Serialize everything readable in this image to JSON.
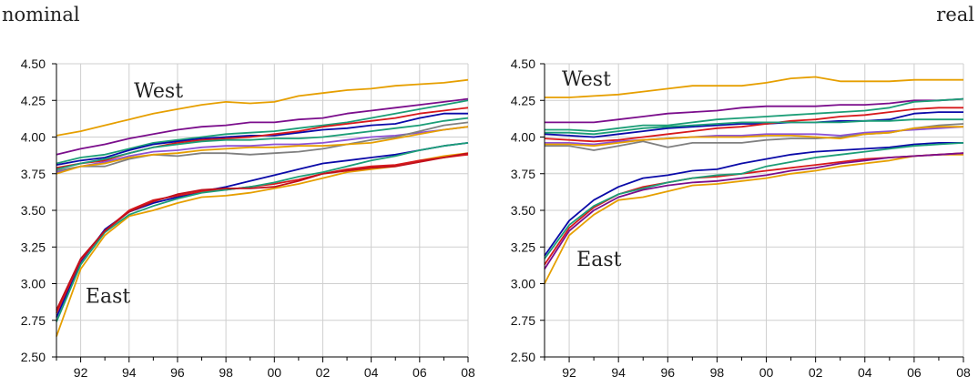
{
  "panels_titles": {
    "left": "nominal",
    "right": "real"
  },
  "x_tick_labels": [
    "92",
    "94",
    "96",
    "98",
    "00",
    "02",
    "04",
    "06",
    "08"
  ],
  "palette": [
    "#e69f00",
    "#7b0e8c",
    "#1c9e77",
    "#0a0aa8",
    "#d7191c",
    "#8c52d6",
    "#808080",
    "#c0101c"
  ],
  "chart_data": [
    {
      "type": "line",
      "title": "nominal",
      "x": [
        1991,
        1992,
        1993,
        1994,
        1995,
        1996,
        1997,
        1998,
        1999,
        2000,
        2001,
        2002,
        2003,
        2004,
        2005,
        2006,
        2007,
        2008
      ],
      "xlim": [
        1991,
        2008
      ],
      "ylim": [
        2.5,
        4.5
      ],
      "y_ticks": [
        "2.50",
        "2.75",
        "3.00",
        "3.25",
        "3.50",
        "3.75",
        "4.00",
        "4.25",
        "4.50"
      ],
      "grid": true,
      "annotations": [
        {
          "text": "West",
          "x": 1994.2,
          "y": 4.27
        },
        {
          "text": "East",
          "x": 1992.2,
          "y": 2.87
        }
      ],
      "series": [
        {
          "group": "West",
          "color": "#e69f00",
          "values": [
            4.01,
            4.04,
            4.08,
            4.12,
            4.16,
            4.19,
            4.22,
            4.24,
            4.23,
            4.24,
            4.28,
            4.3,
            4.32,
            4.33,
            4.35,
            4.36,
            4.37,
            4.39
          ]
        },
        {
          "group": "West",
          "color": "#7b0e8c",
          "values": [
            3.88,
            3.92,
            3.95,
            3.99,
            4.02,
            4.05,
            4.07,
            4.08,
            4.1,
            4.1,
            4.12,
            4.13,
            4.16,
            4.18,
            4.2,
            4.22,
            4.24,
            4.26
          ]
        },
        {
          "group": "West",
          "color": "#1c9e77",
          "values": [
            3.82,
            3.86,
            3.88,
            3.92,
            3.96,
            3.98,
            4.0,
            4.02,
            4.03,
            4.04,
            4.06,
            4.08,
            4.1,
            4.13,
            4.16,
            4.19,
            4.22,
            4.25
          ]
        },
        {
          "group": "West",
          "color": "#0a0aa8",
          "values": [
            3.81,
            3.84,
            3.86,
            3.91,
            3.95,
            3.97,
            3.99,
            4.0,
            4.01,
            4.01,
            4.03,
            4.05,
            4.06,
            4.08,
            4.09,
            4.13,
            4.16,
            4.16
          ]
        },
        {
          "group": "West",
          "color": "#d7191c",
          "values": [
            3.79,
            3.82,
            3.84,
            3.89,
            3.93,
            3.96,
            3.98,
            3.99,
            4.0,
            4.02,
            4.04,
            4.07,
            4.09,
            4.11,
            4.13,
            4.16,
            4.18,
            4.2
          ]
        },
        {
          "group": "West",
          "color": "#1c9e77",
          "values": [
            3.78,
            3.82,
            3.85,
            3.89,
            3.93,
            3.95,
            3.97,
            3.98,
            3.98,
            3.99,
            3.99,
            4.0,
            4.02,
            4.04,
            4.06,
            4.08,
            4.11,
            4.13
          ]
        },
        {
          "group": "West",
          "color": "#8c52d6",
          "values": [
            3.76,
            3.8,
            3.83,
            3.87,
            3.9,
            3.91,
            3.93,
            3.94,
            3.94,
            3.95,
            3.95,
            3.96,
            3.98,
            4.0,
            4.01,
            4.03,
            4.05,
            4.07
          ]
        },
        {
          "group": "West",
          "color": "#808080",
          "values": [
            3.77,
            3.8,
            3.8,
            3.85,
            3.88,
            3.87,
            3.89,
            3.89,
            3.88,
            3.89,
            3.9,
            3.92,
            3.95,
            3.98,
            4.0,
            4.04,
            4.08,
            4.1
          ]
        },
        {
          "group": "West",
          "color": "#e69f00",
          "values": [
            3.75,
            3.8,
            3.82,
            3.86,
            3.88,
            3.89,
            3.91,
            3.92,
            3.93,
            3.93,
            3.94,
            3.94,
            3.95,
            3.96,
            3.99,
            4.02,
            4.05,
            4.07
          ]
        },
        {
          "group": "East",
          "color": "#e69f00",
          "values": [
            2.64,
            3.1,
            3.33,
            3.46,
            3.5,
            3.55,
            3.59,
            3.6,
            3.62,
            3.65,
            3.68,
            3.72,
            3.76,
            3.78,
            3.8,
            3.84,
            3.87,
            3.89
          ]
        },
        {
          "group": "East",
          "color": "#0a0aa8",
          "values": [
            2.77,
            3.15,
            3.37,
            3.49,
            3.55,
            3.59,
            3.63,
            3.66,
            3.7,
            3.74,
            3.78,
            3.82,
            3.84,
            3.86,
            3.88,
            3.91,
            3.94,
            3.96
          ]
        },
        {
          "group": "East",
          "color": "#d7191c",
          "values": [
            2.8,
            3.16,
            3.36,
            3.5,
            3.57,
            3.6,
            3.63,
            3.64,
            3.66,
            3.68,
            3.71,
            3.75,
            3.78,
            3.8,
            3.81,
            3.84,
            3.86,
            3.88
          ]
        },
        {
          "group": "East",
          "color": "#1c9e77",
          "values": [
            2.74,
            3.13,
            3.35,
            3.47,
            3.53,
            3.58,
            3.62,
            3.64,
            3.66,
            3.69,
            3.73,
            3.76,
            3.8,
            3.84,
            3.87,
            3.91,
            3.94,
            3.96
          ]
        },
        {
          "group": "East",
          "color": "#c0101c",
          "values": [
            2.82,
            3.17,
            3.36,
            3.49,
            3.56,
            3.61,
            3.64,
            3.65,
            3.65,
            3.66,
            3.7,
            3.75,
            3.77,
            3.79,
            3.8,
            3.83,
            3.86,
            3.89
          ]
        }
      ]
    },
    {
      "type": "line",
      "title": "real",
      "x": [
        1991,
        1992,
        1993,
        1994,
        1995,
        1996,
        1997,
        1998,
        1999,
        2000,
        2001,
        2002,
        2003,
        2004,
        2005,
        2006,
        2007,
        2008
      ],
      "xlim": [
        1991,
        2008
      ],
      "ylim": [
        2.5,
        4.5
      ],
      "y_ticks": [
        "2.50",
        "2.75",
        "3.00",
        "3.25",
        "3.50",
        "3.75",
        "4.00",
        "4.25",
        "4.50"
      ],
      "grid": true,
      "annotations": [
        {
          "text": "West",
          "x": 1991.7,
          "y": 4.35
        },
        {
          "text": "East",
          "x": 1992.3,
          "y": 3.12
        }
      ],
      "series": [
        {
          "group": "West",
          "color": "#e69f00",
          "values": [
            4.27,
            4.27,
            4.28,
            4.29,
            4.31,
            4.33,
            4.35,
            4.35,
            4.35,
            4.37,
            4.4,
            4.41,
            4.38,
            4.38,
            4.38,
            4.39,
            4.39,
            4.39
          ]
        },
        {
          "group": "West",
          "color": "#7b0e8c",
          "values": [
            4.1,
            4.1,
            4.1,
            4.12,
            4.14,
            4.16,
            4.17,
            4.18,
            4.2,
            4.21,
            4.21,
            4.21,
            4.22,
            4.22,
            4.23,
            4.25,
            4.25,
            4.26
          ]
        },
        {
          "group": "West",
          "color": "#1c9e77",
          "values": [
            4.05,
            4.05,
            4.04,
            4.06,
            4.08,
            4.08,
            4.1,
            4.12,
            4.13,
            4.14,
            4.15,
            4.16,
            4.17,
            4.18,
            4.2,
            4.24,
            4.25,
            4.26
          ]
        },
        {
          "group": "West",
          "color": "#0a0aa8",
          "values": [
            4.02,
            4.01,
            4.0,
            4.02,
            4.04,
            4.06,
            4.07,
            4.08,
            4.09,
            4.09,
            4.1,
            4.1,
            4.11,
            4.11,
            4.12,
            4.16,
            4.17,
            4.17
          ]
        },
        {
          "group": "West",
          "color": "#d7191c",
          "values": [
            3.99,
            3.98,
            3.97,
            3.98,
            4.0,
            4.02,
            4.04,
            4.06,
            4.07,
            4.09,
            4.11,
            4.12,
            4.14,
            4.15,
            4.17,
            4.19,
            4.2,
            4.2
          ]
        },
        {
          "group": "West",
          "color": "#1c9e77",
          "values": [
            4.03,
            4.03,
            4.02,
            4.04,
            4.06,
            4.07,
            4.08,
            4.09,
            4.1,
            4.1,
            4.1,
            4.1,
            4.1,
            4.11,
            4.11,
            4.12,
            4.12,
            4.12
          ]
        },
        {
          "group": "West",
          "color": "#8c52d6",
          "values": [
            3.96,
            3.96,
            3.95,
            3.97,
            3.98,
            3.99,
            4.0,
            4.01,
            4.01,
            4.02,
            4.02,
            4.02,
            4.01,
            4.03,
            4.04,
            4.05,
            4.06,
            4.07
          ]
        },
        {
          "group": "West",
          "color": "#808080",
          "values": [
            3.94,
            3.94,
            3.91,
            3.94,
            3.97,
            3.93,
            3.96,
            3.96,
            3.96,
            3.98,
            3.99,
            3.99,
            4.0,
            4.02,
            4.03,
            4.06,
            4.08,
            4.09
          ]
        },
        {
          "group": "West",
          "color": "#e69f00",
          "values": [
            3.95,
            3.95,
            3.94,
            3.96,
            3.98,
            3.99,
            4.0,
            4.0,
            4.0,
            4.01,
            4.01,
            4.0,
            3.99,
            4.02,
            4.03,
            4.06,
            4.07,
            4.07
          ]
        },
        {
          "group": "East",
          "color": "#e69f00",
          "values": [
            3.0,
            3.33,
            3.47,
            3.57,
            3.59,
            3.63,
            3.67,
            3.68,
            3.7,
            3.72,
            3.75,
            3.77,
            3.8,
            3.82,
            3.84,
            3.87,
            3.88,
            3.88
          ]
        },
        {
          "group": "East",
          "color": "#0a0aa8",
          "values": [
            3.19,
            3.43,
            3.57,
            3.66,
            3.72,
            3.74,
            3.77,
            3.78,
            3.82,
            3.85,
            3.88,
            3.9,
            3.91,
            3.92,
            3.93,
            3.95,
            3.96,
            3.96
          ]
        },
        {
          "group": "East",
          "color": "#d7191c",
          "values": [
            3.13,
            3.38,
            3.52,
            3.61,
            3.66,
            3.69,
            3.72,
            3.73,
            3.75,
            3.77,
            3.79,
            3.81,
            3.83,
            3.85,
            3.86,
            3.87,
            3.88,
            3.89
          ]
        },
        {
          "group": "East",
          "color": "#1c9e77",
          "values": [
            3.17,
            3.4,
            3.53,
            3.61,
            3.65,
            3.69,
            3.72,
            3.74,
            3.75,
            3.8,
            3.83,
            3.86,
            3.88,
            3.9,
            3.92,
            3.94,
            3.95,
            3.96
          ]
        },
        {
          "group": "East",
          "color": "#7b0e8c",
          "values": [
            3.1,
            3.36,
            3.5,
            3.59,
            3.64,
            3.67,
            3.69,
            3.7,
            3.72,
            3.74,
            3.77,
            3.79,
            3.82,
            3.84,
            3.86,
            3.87,
            3.88,
            3.89
          ]
        }
      ]
    }
  ]
}
